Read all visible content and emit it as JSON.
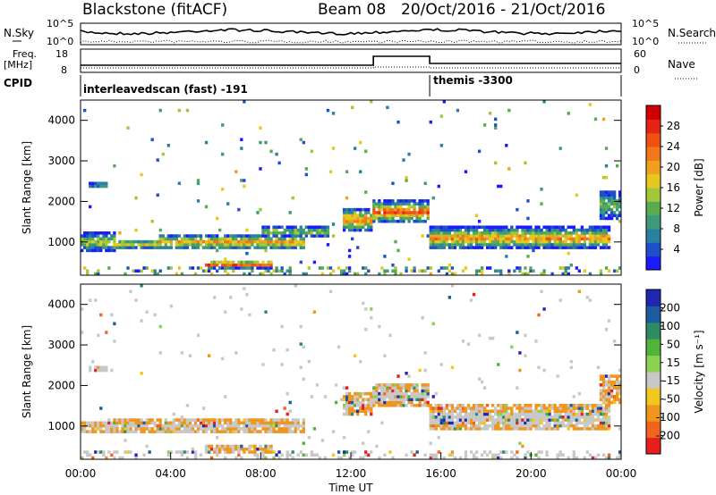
{
  "header": {
    "station": "Blackstone (fitACF)",
    "beam": "Beam 08",
    "date_range": "20/Oct/2016 - 21/Oct/2016"
  },
  "noise_panel": {
    "left_label": "N.Sky",
    "left_ticks": [
      "10^5",
      "10^0"
    ],
    "right_label": "N.Search",
    "right_ticks": [
      "10^5",
      "10^0"
    ]
  },
  "freq_panel": {
    "left_label_top": "Freq.",
    "left_label_unit": "[MHz]",
    "left_ticks": [
      "18",
      "8"
    ],
    "right_label": "Nave",
    "right_ticks": [
      "60",
      "0"
    ]
  },
  "cpid_panel": {
    "label": "CPID",
    "segments": [
      {
        "name": "interleavedscan (fast) -191",
        "start_hour": 0,
        "end_hour": 15.5
      },
      {
        "name": "themis -3300",
        "start_hour": 15.5,
        "end_hour": 24
      }
    ]
  },
  "chart_data": [
    {
      "type": "heatmap",
      "title": "Power",
      "ylabel": "Slant Range [km]",
      "ylim": [
        180,
        4500
      ],
      "yticks": [
        "1000",
        "2000",
        "3000",
        "4000"
      ],
      "xlim": [
        0,
        24
      ],
      "colorbar_label": "Power [dB]",
      "colorbar_ticks": [
        "4",
        "8",
        "12",
        "16",
        "20",
        "24",
        "28"
      ],
      "colors": [
        "#1a1aff",
        "#1e50c8",
        "#2a80a0",
        "#3c9a78",
        "#5aaa50",
        "#a0c83a",
        "#e6c81e",
        "#f0a01e",
        "#f07818",
        "#f05010",
        "#e62314",
        "#d00000"
      ],
      "echo_bands": [
        {
          "from_hour": 0.0,
          "to_hour": 1.5,
          "center_km": 1000,
          "width_km": 450,
          "strength": 0.55
        },
        {
          "from_hour": 0.4,
          "to_hour": 1.2,
          "center_km": 2400,
          "width_km": 180,
          "strength": 0.25
        },
        {
          "from_hour": 1.5,
          "to_hour": 3.5,
          "center_km": 950,
          "width_km": 250,
          "strength": 0.6
        },
        {
          "from_hour": 3.5,
          "to_hour": 10.0,
          "center_km": 1000,
          "width_km": 400,
          "strength": 0.65
        },
        {
          "from_hour": 5.5,
          "to_hour": 8.5,
          "center_km": 450,
          "width_km": 220,
          "strength": 0.9
        },
        {
          "from_hour": 8.0,
          "to_hour": 11.0,
          "center_km": 1250,
          "width_km": 300,
          "strength": 0.45
        },
        {
          "from_hour": 11.6,
          "to_hour": 13.0,
          "center_km": 1550,
          "width_km": 600,
          "strength": 0.75
        },
        {
          "from_hour": 13.0,
          "to_hour": 15.5,
          "center_km": 1750,
          "width_km": 550,
          "strength": 0.85
        },
        {
          "from_hour": 15.5,
          "to_hour": 23.5,
          "center_km": 1100,
          "width_km": 550,
          "strength": 0.7
        },
        {
          "from_hour": 23.0,
          "to_hour": 24.0,
          "center_km": 1900,
          "width_km": 700,
          "strength": 0.4
        }
      ]
    },
    {
      "type": "heatmap",
      "title": "Velocity",
      "ylabel": "Slant Range [km]",
      "xlabel": "Time UT",
      "ylim": [
        180,
        4500
      ],
      "yticks": [
        "1000",
        "2000",
        "3000",
        "4000"
      ],
      "xlim": [
        0,
        24
      ],
      "xticks": [
        "00:00",
        "04:00",
        "08:00",
        "12:00",
        "16:00",
        "20:00",
        "00:00"
      ],
      "colorbar_label": "Velocity [m s⁻¹]",
      "colorbar_ticks": [
        "200",
        "100",
        "50",
        "15",
        "-15",
        "-50",
        "-100",
        "-200"
      ],
      "colors": [
        "#1e28b4",
        "#1e5aa0",
        "#2d8c64",
        "#50b43c",
        "#8cd250",
        "#c8c8c8",
        "#f0c81e",
        "#f0961e",
        "#f0641e",
        "#e61e1e"
      ],
      "echo_bands": [
        {
          "from_hour": 0.0,
          "to_hour": 1.5,
          "center_km": 1000,
          "width_km": 300,
          "strength": 0.2
        },
        {
          "from_hour": 0.4,
          "to_hour": 1.2,
          "center_km": 2400,
          "width_km": 180,
          "strength": 0.5
        },
        {
          "from_hour": 1.5,
          "to_hour": 10.0,
          "center_km": 1000,
          "width_km": 350,
          "strength": 0.45
        },
        {
          "from_hour": 5.5,
          "to_hour": 8.5,
          "center_km": 450,
          "width_km": 220,
          "strength": 0.15
        },
        {
          "from_hour": 11.6,
          "to_hour": 13.0,
          "center_km": 1550,
          "width_km": 600,
          "strength": 0.35
        },
        {
          "from_hour": 13.0,
          "to_hour": 15.5,
          "center_km": 1750,
          "width_km": 600,
          "strength": 0.5
        },
        {
          "from_hour": 15.5,
          "to_hour": 23.5,
          "center_km": 1200,
          "width_km": 650,
          "strength": 0.5
        },
        {
          "from_hour": 23.0,
          "to_hour": 24.0,
          "center_km": 1900,
          "width_km": 700,
          "strength": 0.1
        }
      ]
    }
  ]
}
